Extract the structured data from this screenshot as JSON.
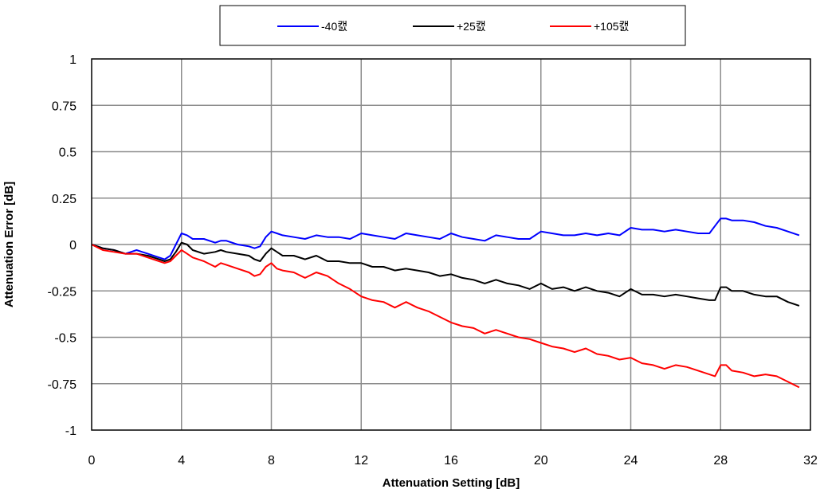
{
  "chart_data": {
    "type": "line",
    "title": "",
    "xlabel": "Attenuation Setting [dB]",
    "ylabel": "Attenuation Error [dB]",
    "xlim": [
      0,
      32
    ],
    "ylim": [
      -1,
      1
    ],
    "xticks": [
      0,
      4,
      8,
      12,
      16,
      20,
      24,
      28,
      32
    ],
    "yticks": [
      1,
      0.75,
      0.5,
      0.25,
      0,
      -0.25,
      -0.5,
      -0.75,
      -1
    ],
    "ytick_labels": [
      "1",
      "0.75",
      "0.5",
      "0.25",
      "0",
      "-0.25",
      "-0.5",
      "-0.75",
      "-1"
    ],
    "grid": true,
    "legend_position": "top",
    "series": [
      {
        "name": "-40캜",
        "color": "#0000ff",
        "x": [
          0,
          0.5,
          1,
          1.5,
          1.75,
          2,
          2.25,
          2.5,
          3,
          3.25,
          3.5,
          3.75,
          4,
          4.25,
          4.5,
          5,
          5.5,
          5.75,
          6,
          6.5,
          7,
          7.25,
          7.5,
          7.75,
          8,
          8.25,
          8.5,
          9,
          9.5,
          10,
          10.5,
          11,
          11.5,
          12,
          12.5,
          13,
          13.5,
          14,
          14.5,
          15,
          15.5,
          16,
          16.5,
          17,
          17.5,
          18,
          18.5,
          19,
          19.5,
          20,
          20.5,
          21,
          21.5,
          22,
          22.5,
          23,
          23.5,
          24,
          24.5,
          25,
          25.5,
          26,
          26.5,
          27,
          27.5,
          27.75,
          28,
          28.25,
          28.5,
          29,
          29.5,
          30,
          30.5,
          31,
          31.5
        ],
        "values": [
          0,
          -0.02,
          -0.03,
          -0.05,
          -0.04,
          -0.03,
          -0.04,
          -0.05,
          -0.07,
          -0.08,
          -0.06,
          0.0,
          0.06,
          0.05,
          0.03,
          0.03,
          0.01,
          0.02,
          0.02,
          0.0,
          -0.01,
          -0.02,
          -0.01,
          0.04,
          0.07,
          0.06,
          0.05,
          0.04,
          0.03,
          0.05,
          0.04,
          0.04,
          0.03,
          0.06,
          0.05,
          0.04,
          0.03,
          0.06,
          0.05,
          0.04,
          0.03,
          0.06,
          0.04,
          0.03,
          0.02,
          0.05,
          0.04,
          0.03,
          0.03,
          0.07,
          0.06,
          0.05,
          0.05,
          0.06,
          0.05,
          0.06,
          0.05,
          0.09,
          0.08,
          0.08,
          0.07,
          0.08,
          0.07,
          0.06,
          0.06,
          0.1,
          0.14,
          0.14,
          0.13,
          0.13,
          0.12,
          0.1,
          0.09,
          0.07,
          0.05
        ]
      },
      {
        "name": "+25캜",
        "color": "#000000",
        "x": [
          0,
          0.5,
          1,
          1.5,
          2,
          2.5,
          3,
          3.25,
          3.5,
          3.75,
          4,
          4.25,
          4.5,
          5,
          5.5,
          5.75,
          6,
          6.5,
          7,
          7.25,
          7.5,
          7.75,
          8,
          8.25,
          8.5,
          9,
          9.5,
          10,
          10.5,
          11,
          11.5,
          12,
          12.5,
          13,
          13.5,
          14,
          14.5,
          15,
          15.5,
          16,
          16.5,
          17,
          17.5,
          18,
          18.5,
          19,
          19.5,
          20,
          20.5,
          21,
          21.5,
          22,
          22.5,
          23,
          23.5,
          24,
          24.5,
          25,
          25.5,
          26,
          26.5,
          27,
          27.5,
          27.75,
          28,
          28.25,
          28.5,
          29,
          29.5,
          30,
          30.5,
          31,
          31.5
        ],
        "values": [
          0,
          -0.02,
          -0.03,
          -0.05,
          -0.05,
          -0.06,
          -0.08,
          -0.09,
          -0.08,
          -0.04,
          0.01,
          0.0,
          -0.03,
          -0.05,
          -0.04,
          -0.03,
          -0.04,
          -0.05,
          -0.06,
          -0.08,
          -0.09,
          -0.05,
          -0.02,
          -0.04,
          -0.06,
          -0.06,
          -0.08,
          -0.06,
          -0.09,
          -0.09,
          -0.1,
          -0.1,
          -0.12,
          -0.12,
          -0.14,
          -0.13,
          -0.14,
          -0.15,
          -0.17,
          -0.16,
          -0.18,
          -0.19,
          -0.21,
          -0.19,
          -0.21,
          -0.22,
          -0.24,
          -0.21,
          -0.24,
          -0.23,
          -0.25,
          -0.23,
          -0.25,
          -0.26,
          -0.28,
          -0.24,
          -0.27,
          -0.27,
          -0.28,
          -0.27,
          -0.28,
          -0.29,
          -0.3,
          -0.3,
          -0.23,
          -0.23,
          -0.25,
          -0.25,
          -0.27,
          -0.28,
          -0.28,
          -0.31,
          -0.33
        ]
      },
      {
        "name": "+105캜",
        "color": "#ff0000",
        "x": [
          0,
          0.5,
          1,
          1.5,
          2,
          2.5,
          3,
          3.25,
          3.5,
          3.75,
          4,
          4.25,
          4.5,
          5,
          5.5,
          5.75,
          6,
          6.5,
          7,
          7.25,
          7.5,
          7.75,
          8,
          8.25,
          8.5,
          9,
          9.5,
          10,
          10.5,
          11,
          11.5,
          12,
          12.5,
          13,
          13.5,
          14,
          14.5,
          15,
          15.5,
          16,
          16.5,
          17,
          17.5,
          18,
          18.5,
          19,
          19.5,
          20,
          20.5,
          21,
          21.5,
          22,
          22.5,
          23,
          23.5,
          24,
          24.5,
          25,
          25.5,
          26,
          26.5,
          27,
          27.5,
          27.75,
          28,
          28.25,
          28.5,
          29,
          29.5,
          30,
          30.5,
          31,
          31.5
        ],
        "values": [
          0,
          -0.03,
          -0.04,
          -0.05,
          -0.05,
          -0.07,
          -0.09,
          -0.1,
          -0.09,
          -0.06,
          -0.03,
          -0.05,
          -0.07,
          -0.09,
          -0.12,
          -0.1,
          -0.11,
          -0.13,
          -0.15,
          -0.17,
          -0.16,
          -0.12,
          -0.1,
          -0.13,
          -0.14,
          -0.15,
          -0.18,
          -0.15,
          -0.17,
          -0.21,
          -0.24,
          -0.28,
          -0.3,
          -0.31,
          -0.34,
          -0.31,
          -0.34,
          -0.36,
          -0.39,
          -0.42,
          -0.44,
          -0.45,
          -0.48,
          -0.46,
          -0.48,
          -0.5,
          -0.51,
          -0.53,
          -0.55,
          -0.56,
          -0.58,
          -0.56,
          -0.59,
          -0.6,
          -0.62,
          -0.61,
          -0.64,
          -0.65,
          -0.67,
          -0.65,
          -0.66,
          -0.68,
          -0.7,
          -0.71,
          -0.65,
          -0.65,
          -0.68,
          -0.69,
          -0.71,
          -0.7,
          -0.71,
          -0.74,
          -0.77
        ]
      }
    ]
  }
}
